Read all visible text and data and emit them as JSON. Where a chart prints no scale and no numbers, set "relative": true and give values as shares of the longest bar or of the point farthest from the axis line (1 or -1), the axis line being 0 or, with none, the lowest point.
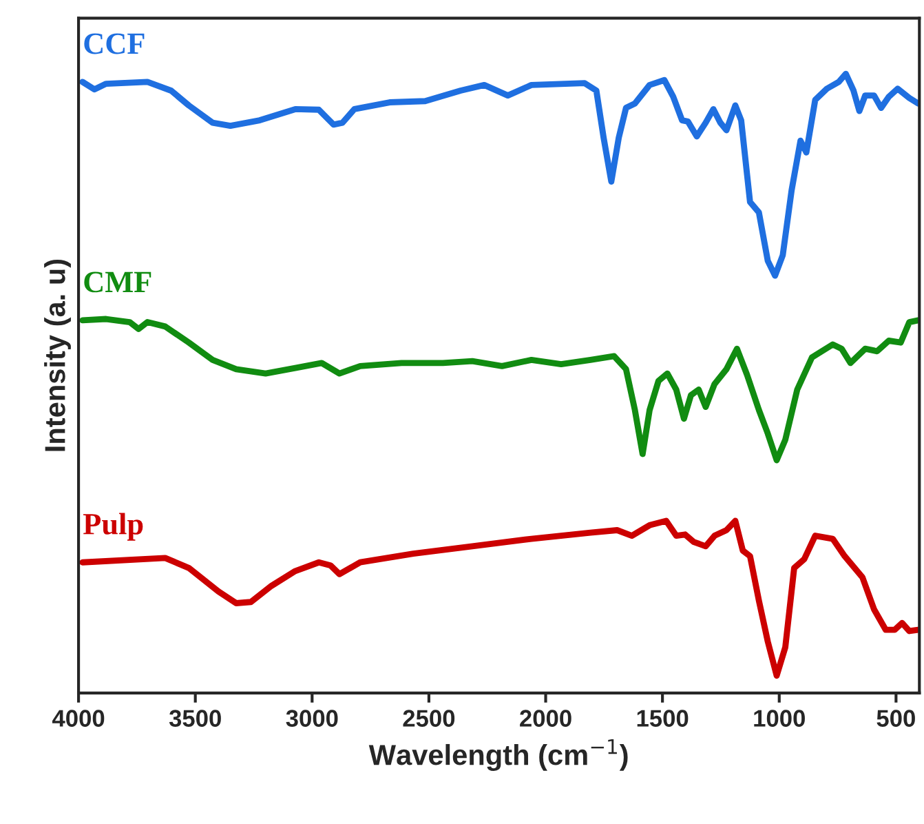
{
  "chart_data": {
    "type": "line",
    "xlabel": "Wavelength (cm$^{−1}$)",
    "ylabel": "Intensity (a. u)",
    "relative": true,
    "tick_labels": "x",
    "xlim": [
      4000,
      400
    ],
    "xticks": [
      4000,
      3500,
      3000,
      2500,
      2000,
      1500,
      1000,
      500
    ],
    "grid": false,
    "legend": false,
    "marker": "none",
    "line_style": "solid",
    "series": [
      {
        "name": "CCF",
        "color": "#1f6fe0",
        "x": [
          3983,
          3932,
          3882,
          3705,
          3604,
          3528,
          3426,
          3350,
          3224,
          3072,
          2971,
          2908,
          2870,
          2819,
          2668,
          2516,
          2364,
          2263,
          2162,
          2061,
          1833,
          1783,
          1752,
          1719,
          1687,
          1656,
          1618,
          1555,
          1492,
          1454,
          1416,
          1391,
          1353,
          1315,
          1282,
          1252,
          1226,
          1188,
          1163,
          1125,
          1087,
          1049,
          1018,
          985,
          947,
          909,
          884,
          846,
          796,
          745,
          715,
          682,
          657,
          632,
          594,
          564,
          531,
          493,
          443,
          405
        ],
        "values": [
          0.987,
          0.975,
          0.984,
          0.987,
          0.973,
          0.949,
          0.921,
          0.916,
          0.925,
          0.943,
          0.942,
          0.918,
          0.921,
          0.943,
          0.954,
          0.956,
          0.973,
          0.982,
          0.965,
          0.982,
          0.985,
          0.973,
          0.897,
          0.826,
          0.897,
          0.945,
          0.952,
          0.982,
          0.99,
          0.963,
          0.925,
          0.923,
          0.899,
          0.921,
          0.943,
          0.921,
          0.909,
          0.949,
          0.925,
          0.793,
          0.776,
          0.698,
          0.674,
          0.707,
          0.812,
          0.892,
          0.873,
          0.958,
          0.976,
          0.987,
          1.0,
          0.973,
          0.94,
          0.965,
          0.965,
          0.945,
          0.963,
          0.976,
          0.961,
          0.952
        ]
      },
      {
        "name": "CMF",
        "color": "#118c11",
        "x": [
          3983,
          3882,
          3781,
          3743,
          3705,
          3629,
          3528,
          3426,
          3325,
          3199,
          3072,
          2959,
          2883,
          2794,
          2617,
          2440,
          2314,
          2187,
          2061,
          1934,
          1808,
          1707,
          1656,
          1618,
          1585,
          1555,
          1517,
          1479,
          1441,
          1408,
          1378,
          1345,
          1315,
          1277,
          1226,
          1181,
          1138,
          1087,
          1049,
          1011,
          974,
          923,
          860,
          771,
          733,
          695,
          632,
          581,
          531,
          480,
          443,
          405
        ],
        "values": [
          0.602,
          0.604,
          0.599,
          0.588,
          0.599,
          0.592,
          0.566,
          0.538,
          0.523,
          0.516,
          0.525,
          0.533,
          0.516,
          0.528,
          0.533,
          0.533,
          0.536,
          0.528,
          0.538,
          0.531,
          0.538,
          0.544,
          0.523,
          0.457,
          0.386,
          0.457,
          0.504,
          0.516,
          0.49,
          0.443,
          0.481,
          0.49,
          0.462,
          0.499,
          0.523,
          0.556,
          0.514,
          0.457,
          0.419,
          0.376,
          0.409,
          0.49,
          0.542,
          0.563,
          0.556,
          0.533,
          0.556,
          0.552,
          0.569,
          0.566,
          0.599,
          0.602
        ]
      },
      {
        "name": "Pulp",
        "color": "#cc0000",
        "x": [
          3983,
          3629,
          3528,
          3401,
          3325,
          3262,
          3174,
          3072,
          2971,
          2921,
          2883,
          2794,
          2567,
          2314,
          2061,
          1808,
          1694,
          1631,
          1555,
          1484,
          1441,
          1403,
          1366,
          1315,
          1277,
          1226,
          1188,
          1156,
          1125,
          1087,
          1049,
          1011,
          974,
          936,
          893,
          846,
          771,
          720,
          644,
          594,
          544,
          506,
          474,
          443,
          405
        ],
        "values": [
          0.211,
          0.218,
          0.202,
          0.164,
          0.145,
          0.147,
          0.173,
          0.197,
          0.211,
          0.206,
          0.192,
          0.211,
          0.225,
          0.237,
          0.249,
          0.259,
          0.263,
          0.254,
          0.271,
          0.278,
          0.254,
          0.256,
          0.244,
          0.237,
          0.254,
          0.263,
          0.278,
          0.23,
          0.221,
          0.149,
          0.083,
          0.028,
          0.074,
          0.202,
          0.216,
          0.254,
          0.249,
          0.221,
          0.187,
          0.135,
          0.102,
          0.102,
          0.113,
          0.1,
          0.102
        ]
      }
    ]
  }
}
